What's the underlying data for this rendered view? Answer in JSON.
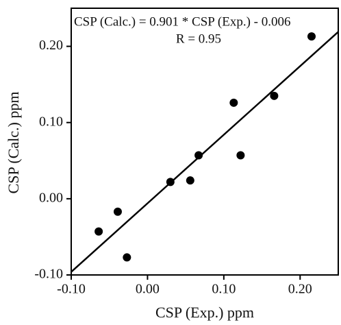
{
  "chart_data": {
    "type": "scatter",
    "xlabel": "CSP (Exp.) ppm",
    "ylabel": "CSP (Calc.) ppm",
    "annotations": [
      "CSP (Calc.) = 0.901 * CSP (Exp.) - 0.006",
      "R = 0.95"
    ],
    "x": [
      -0.064,
      -0.039,
      -0.027,
      0.03,
      0.056,
      0.067,
      0.113,
      0.122,
      0.166,
      0.215
    ],
    "values": [
      -0.043,
      -0.017,
      -0.077,
      0.022,
      0.024,
      0.057,
      0.126,
      0.057,
      0.135,
      0.213
    ],
    "color": "#000000",
    "fit_line": {
      "x": [
        -0.1,
        0.25
      ],
      "values": [
        -0.096,
        0.219
      ]
    },
    "xlim": [
      -0.1,
      0.25
    ],
    "ylim": [
      -0.1,
      0.25
    ],
    "xticks": [
      {
        "value": -0.1,
        "label": "-0.10"
      },
      {
        "value": 0.0,
        "label": "0.00"
      },
      {
        "value": 0.1,
        "label": "0.10"
      },
      {
        "value": 0.2,
        "label": "0.20"
      }
    ],
    "yticks": [
      {
        "value": -0.1,
        "label": "-0.10"
      },
      {
        "value": 0.0,
        "label": "0.00"
      },
      {
        "value": 0.1,
        "label": "0.10"
      },
      {
        "value": 0.2,
        "label": "0.20"
      }
    ]
  }
}
